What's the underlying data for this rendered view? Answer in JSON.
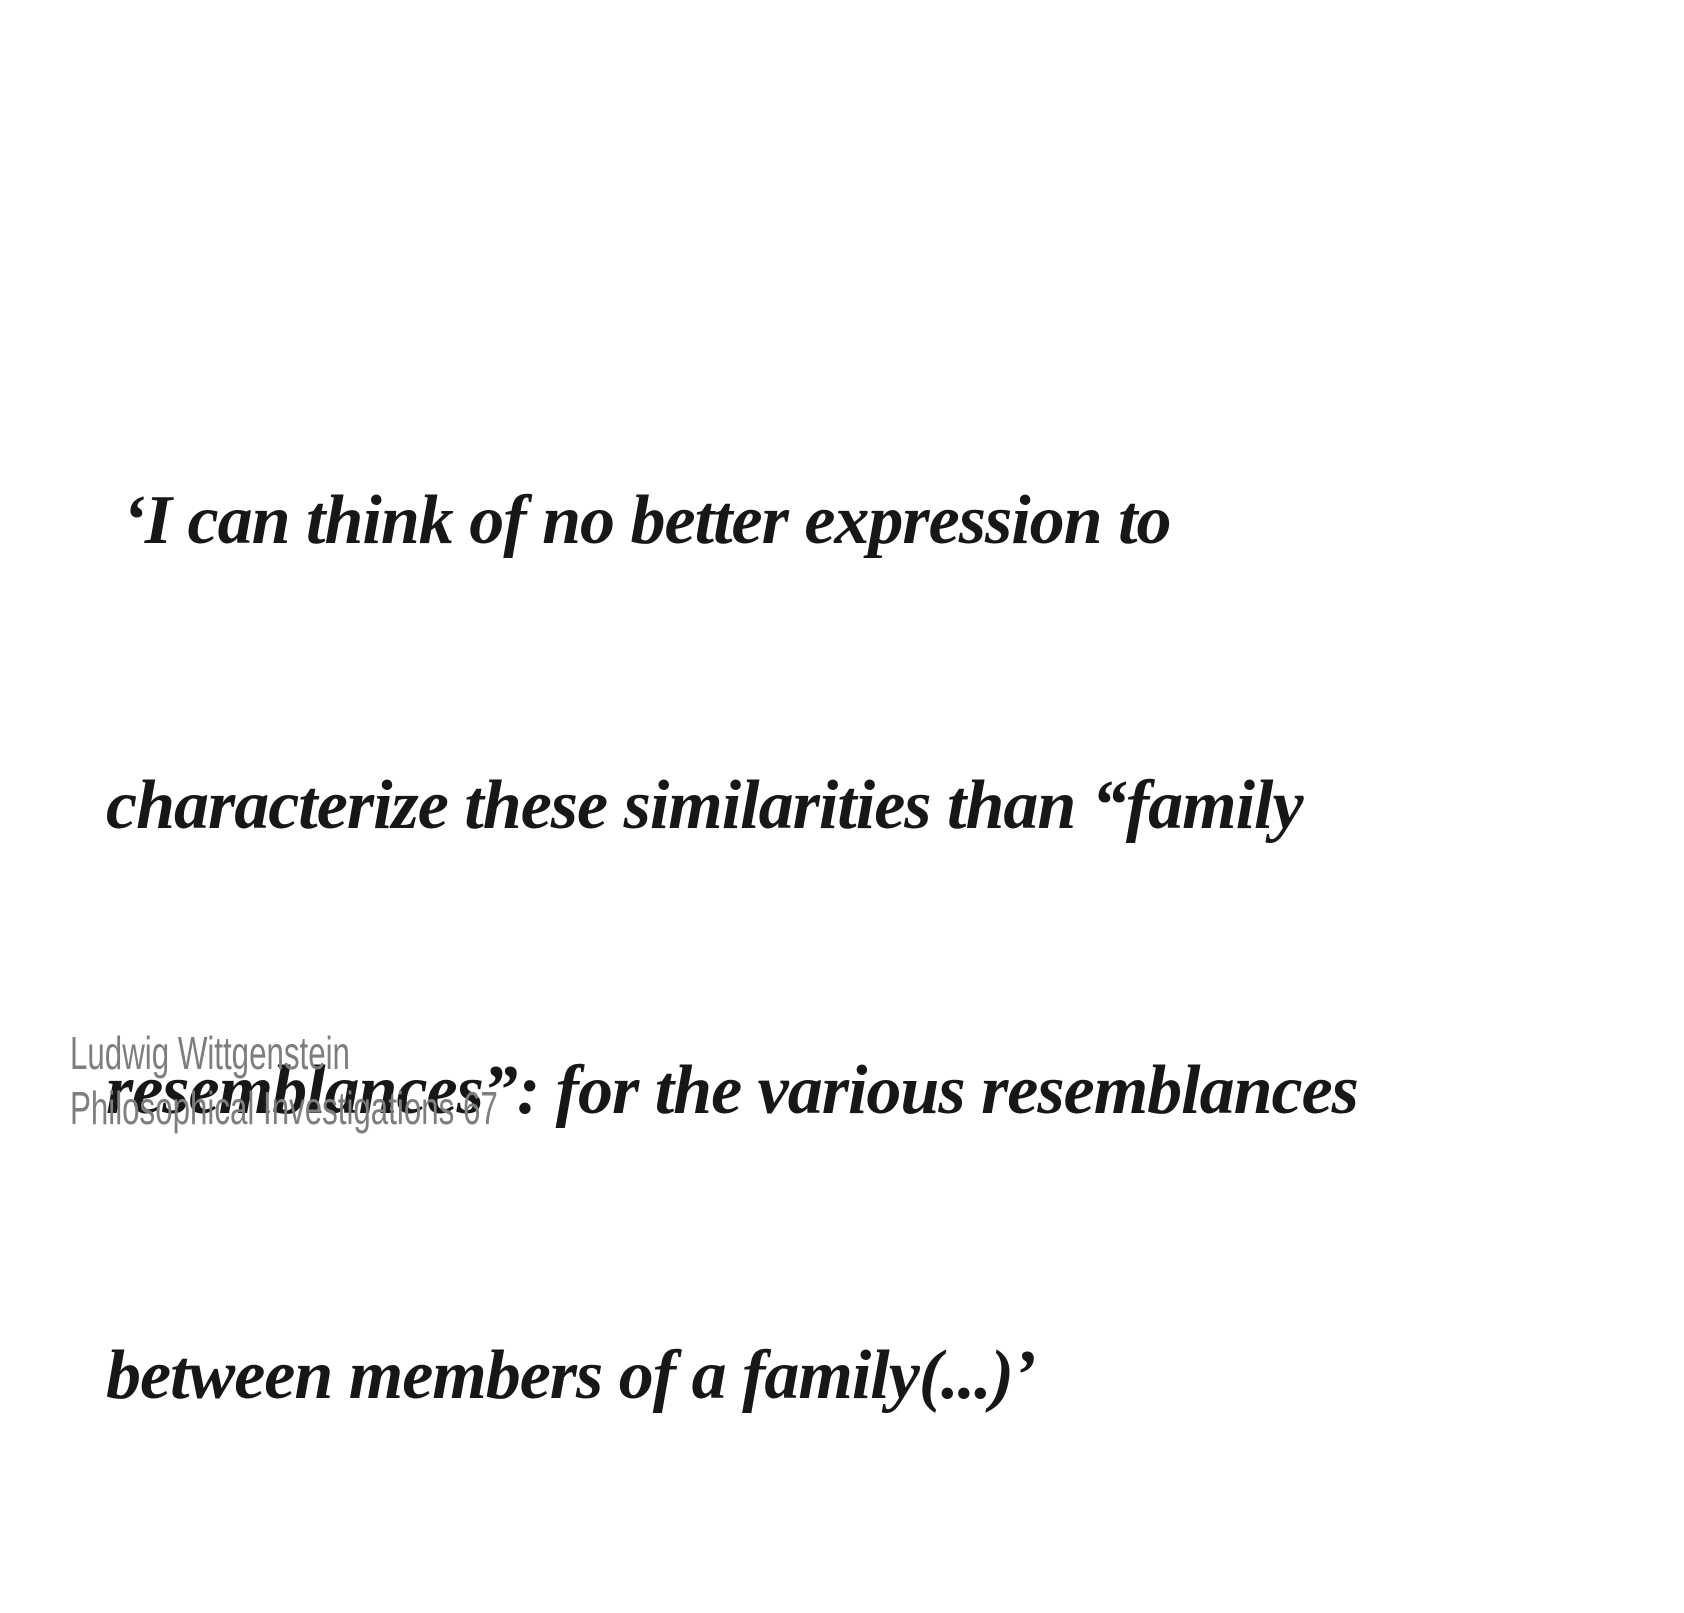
{
  "page": {
    "background_color": "#ffffff"
  },
  "quote": {
    "color": "#171717",
    "lines": [
      " ‘I can think of no better expression to",
      "characterize these similarities than “family",
      "resemblances”: for the various resemblances",
      "between members of a family(...)’"
    ],
    "full_text": "‘I can think of no better expression to characterize these similarities than “family resemblances”: for the various resemblances between members of a family(...)’"
  },
  "attribution": {
    "color": "#7b807c",
    "author": "Ludwig Wittgenstein",
    "source": "Philosophical Investigations 67"
  }
}
